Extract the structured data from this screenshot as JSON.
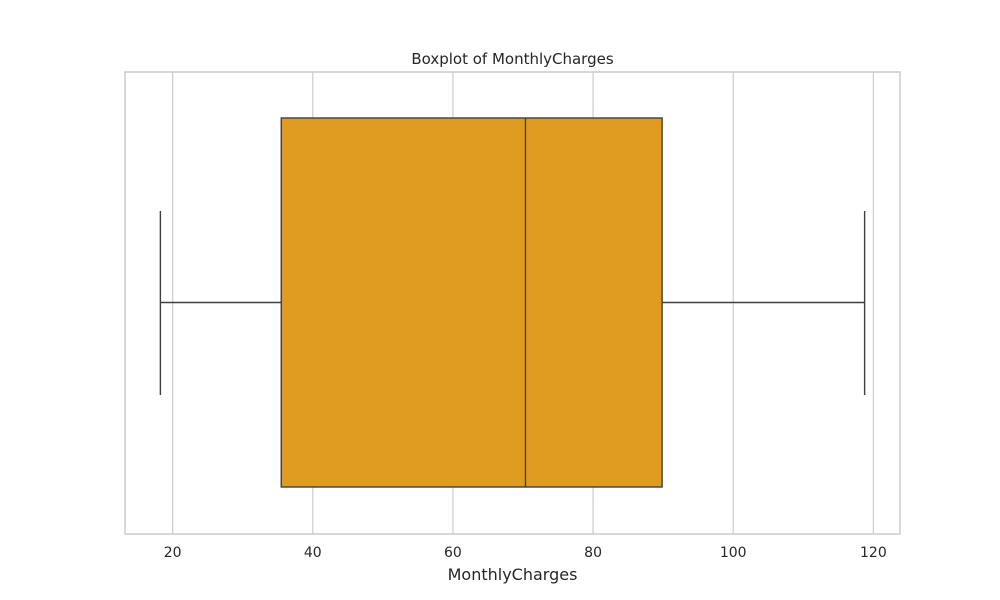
{
  "chart_data": {
    "type": "boxplot",
    "title": "Boxplot of MonthlyCharges",
    "xlabel": "MonthlyCharges",
    "ylabel": "",
    "xlim": [
      13.2,
      123.8
    ],
    "xticks": [
      20,
      40,
      60,
      80,
      100,
      120
    ],
    "grid": true,
    "series": [
      {
        "whisker_low": 18.25,
        "q1": 35.5,
        "median": 70.35,
        "q3": 89.85,
        "whisker_high": 118.75
      }
    ],
    "colors": {
      "box_fill": "#E09C21",
      "line": "#3F3F3F",
      "grid": "#CCCCCC",
      "frame": "#CCCCCC"
    }
  }
}
